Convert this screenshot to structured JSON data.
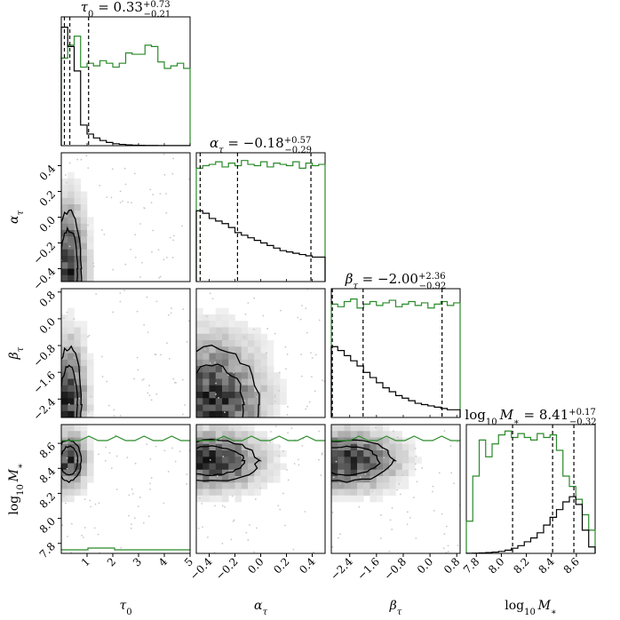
{
  "chart_data": {
    "type": "corner",
    "parameters": [
      {
        "id": "tau0",
        "sym": "τ",
        "sub": "0",
        "range": [
          0,
          5
        ],
        "ticks": [
          1,
          2,
          3,
          4,
          5
        ]
      },
      {
        "id": "alpha",
        "sym": "α",
        "sub": "τ",
        "range": [
          -0.5,
          0.5
        ],
        "ticks": [
          -0.4,
          -0.2,
          0.0,
          0.2,
          0.4
        ]
      },
      {
        "id": "beta",
        "sym": "β",
        "sub": "τ",
        "range": [
          -2.95,
          0.9
        ],
        "ticks": [
          -2.4,
          -1.6,
          -0.8,
          0.0,
          0.8
        ]
      },
      {
        "id": "logM",
        "sym": "M",
        "sub": "∗",
        "prefix": "log",
        "prefix_sub": "10",
        "range": [
          7.72,
          8.75
        ],
        "ticks": [
          7.8,
          8.0,
          8.2,
          8.4,
          8.6
        ]
      }
    ],
    "x_labels": [
      "τ0",
      "ατ",
      "βτ",
      "log10 M∗"
    ],
    "y_labels": [
      "ατ",
      "βτ",
      "log10 M∗"
    ],
    "titles": [
      {
        "lhs": "τ",
        "lhs_sub": "0",
        "eq": " = ",
        "value": "0.33",
        "plus": "+0.73",
        "minus": "−0.21"
      },
      {
        "lhs": "α",
        "lhs_sub": "τ",
        "eq": " = ",
        "value": "−0.18",
        "plus": "+0.57",
        "minus": "−0.29"
      },
      {
        "lhs": "β",
        "lhs_sub": "τ",
        "eq": " = ",
        "value": "−2.00",
        "plus": "+2.36",
        "minus": "−0.92"
      },
      {
        "lhs": "M",
        "lhs_sub": "∗",
        "prefix": "log",
        "prefix_sub": "10",
        "eq": " = ",
        "value": "8.41",
        "plus": "+0.17",
        "minus": "−0.32"
      }
    ],
    "quantiles": {
      "tau0": [
        0.12,
        0.33,
        1.06
      ],
      "alpha": [
        -0.47,
        -0.18,
        0.39
      ],
      "beta": [
        -2.92,
        -2.0,
        0.36
      ],
      "logM": [
        8.09,
        8.41,
        8.58
      ]
    },
    "histograms": {
      "tau0": {
        "black": [
          0.92,
          0.77,
          0.58,
          0.16,
          0.09,
          0.06,
          0.04,
          0.025,
          0.015,
          0.01,
          0.006,
          0.004,
          0.003,
          0.002,
          0.002,
          0.001,
          0.001,
          0.001,
          0.001,
          0.001
        ],
        "green": [
          0.68,
          0.78,
          0.85,
          0.61,
          0.64,
          0.62,
          0.66,
          0.64,
          0.61,
          0.64,
          0.72,
          0.71,
          0.71,
          0.78,
          0.77,
          0.65,
          0.6,
          0.62,
          0.64,
          0.6
        ]
      },
      "alpha": {
        "black": [
          0.55,
          0.53,
          0.49,
          0.47,
          0.45,
          0.42,
          0.38,
          0.36,
          0.34,
          0.32,
          0.3,
          0.28,
          0.26,
          0.24,
          0.23,
          0.22,
          0.21,
          0.2,
          0.19,
          0.19
        ],
        "green": [
          0.88,
          0.9,
          0.91,
          0.93,
          0.89,
          0.92,
          0.9,
          0.94,
          0.91,
          0.9,
          0.93,
          0.89,
          0.92,
          0.91,
          0.9,
          0.93,
          0.88,
          0.92,
          0.9,
          0.91
        ]
      },
      "beta": {
        "black": [
          0.55,
          0.52,
          0.48,
          0.44,
          0.4,
          0.35,
          0.31,
          0.27,
          0.23,
          0.2,
          0.17,
          0.15,
          0.13,
          0.11,
          0.1,
          0.09,
          0.08,
          0.07,
          0.06,
          0.06
        ],
        "green": [
          0.88,
          0.86,
          0.9,
          0.92,
          0.85,
          0.88,
          0.9,
          0.87,
          0.89,
          0.91,
          0.86,
          0.88,
          0.9,
          0.87,
          0.89,
          0.85,
          0.88,
          0.9,
          0.87,
          0.89
        ]
      },
      "logM": {
        "black": [
          0.001,
          0.002,
          0.004,
          0.006,
          0.01,
          0.015,
          0.025,
          0.04,
          0.06,
          0.09,
          0.12,
          0.16,
          0.22,
          0.28,
          0.34,
          0.4,
          0.44,
          0.38,
          0.18,
          0.05
        ],
        "green": [
          0.25,
          0.6,
          0.88,
          0.75,
          0.85,
          0.92,
          0.95,
          0.9,
          0.93,
          0.9,
          0.88,
          0.93,
          0.9,
          0.92,
          0.8,
          0.6,
          0.52,
          0.42,
          0.3,
          0.18
        ]
      }
    },
    "colors": {
      "posterior": "#000000",
      "prior": "#2a8a2a",
      "density_max": "#000000"
    }
  }
}
